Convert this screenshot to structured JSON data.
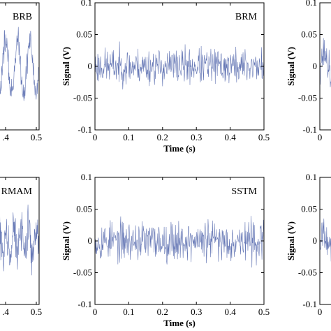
{
  "chart_data": [
    {
      "type": "line",
      "title": "BRB",
      "xlabel": "",
      "ylabel": "",
      "xlim": [
        0,
        0.5
      ],
      "ylim": [
        -0.1,
        0.1
      ],
      "x_ticks": [
        ".4",
        "0.5"
      ],
      "y_ticks": [],
      "signal": {
        "amplitude": 0.04,
        "period_s": 0.05,
        "noise": 0.015,
        "seed": 11
      },
      "line_color": "#4a5fa8"
    },
    {
      "type": "line",
      "title": "BRM",
      "xlabel": "Time (s)",
      "ylabel": "Signal (V)",
      "xlim": [
        0,
        0.5
      ],
      "ylim": [
        -0.1,
        0.1
      ],
      "x_ticks": [
        "0",
        "0.1",
        "0.2",
        "0.3",
        "0.4",
        "0.5"
      ],
      "y_ticks": [
        "0.1",
        "0.05",
        "0",
        "-0.05",
        "-0.1"
      ],
      "signal": {
        "amplitude": 0.0,
        "period_s": 0.05,
        "noise": 0.02,
        "seed": 23
      },
      "line_color": "#4a5fa8"
    },
    {
      "type": "line",
      "title": "",
      "xlabel": "",
      "ylabel": "Signal (V)",
      "xlim": [
        0,
        0.5
      ],
      "ylim": [
        -0.1,
        0.1
      ],
      "x_ticks": [
        "0"
      ],
      "y_ticks": [
        "0.1",
        "0.05",
        "0",
        "-0.05",
        "-0.1"
      ],
      "signal": {
        "amplitude": 0.02,
        "period_s": 0.05,
        "noise": 0.02,
        "seed": 37
      },
      "line_color": "#4a5fa8"
    },
    {
      "type": "line",
      "title": "RMAM",
      "xlabel": "",
      "ylabel": "",
      "xlim": [
        0,
        0.5
      ],
      "ylim": [
        -0.1,
        0.1
      ],
      "x_ticks": [
        ".4",
        "0.5"
      ],
      "y_ticks": [],
      "signal": {
        "amplitude": 0.02,
        "period_s": 0.03,
        "noise": 0.022,
        "seed": 41
      },
      "line_color": "#4a5fa8"
    },
    {
      "type": "line",
      "title": "SSTM",
      "xlabel": "Time (s)",
      "ylabel": "Signal (V)",
      "xlim": [
        0,
        0.5
      ],
      "ylim": [
        -0.1,
        0.1
      ],
      "x_ticks": [
        "0",
        "0.1",
        "0.2",
        "0.3",
        "0.4",
        "0.5"
      ],
      "y_ticks": [
        "0.1",
        "0.05",
        "0",
        "-0.05",
        "-0.1"
      ],
      "signal": {
        "amplitude": 0.0,
        "period_s": 0.05,
        "noise": 0.022,
        "seed": 53
      },
      "line_color": "#4a5fa8"
    },
    {
      "type": "line",
      "title": "",
      "xlabel": "",
      "ylabel": "Signal (V)",
      "xlim": [
        0,
        0.5
      ],
      "ylim": [
        -0.1,
        0.1
      ],
      "x_ticks": [
        "0"
      ],
      "y_ticks": [
        "0.1",
        "0.05",
        "0",
        "-0.05",
        "-0.1"
      ],
      "signal": {
        "amplitude": 0.02,
        "period_s": 0.05,
        "noise": 0.02,
        "seed": 67
      },
      "line_color": "#4a5fa8"
    }
  ]
}
